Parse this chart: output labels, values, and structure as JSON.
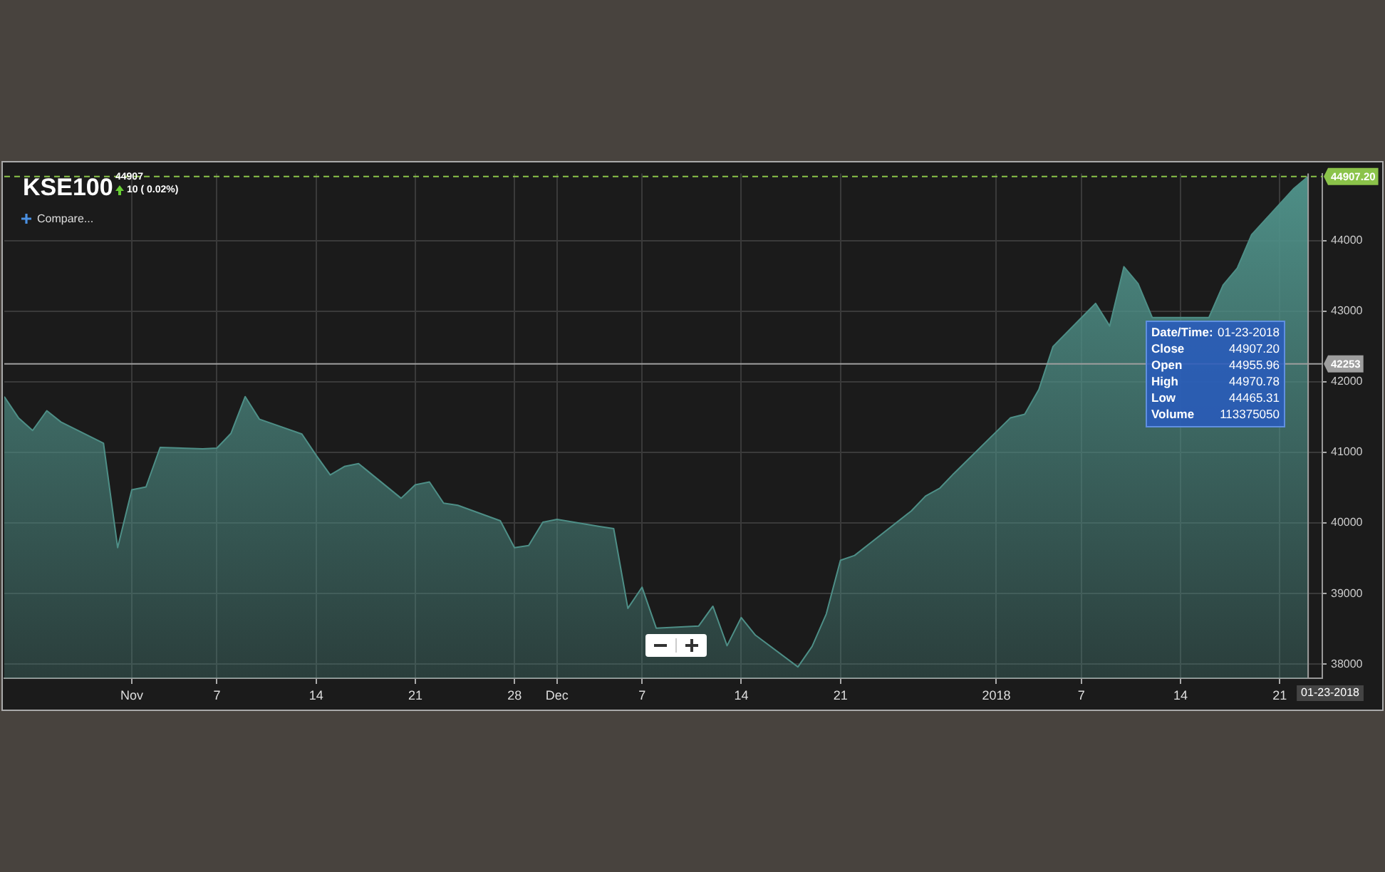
{
  "chart_data": {
    "type": "area",
    "title": "KSE100",
    "subtitle": "44907",
    "x": [
      "2017-10-23",
      "2017-10-24",
      "2017-10-25",
      "2017-10-26",
      "2017-10-27",
      "2017-10-30",
      "2017-10-31",
      "2017-11-01",
      "2017-11-02",
      "2017-11-03",
      "2017-11-06",
      "2017-11-07",
      "2017-11-08",
      "2017-11-09",
      "2017-11-10",
      "2017-11-13",
      "2017-11-14",
      "2017-11-15",
      "2017-11-16",
      "2017-11-17",
      "2017-11-20",
      "2017-11-21",
      "2017-11-22",
      "2017-11-23",
      "2017-11-24",
      "2017-11-27",
      "2017-11-28",
      "2017-11-29",
      "2017-11-30",
      "2017-12-01",
      "2017-12-04",
      "2017-12-05",
      "2017-12-06",
      "2017-12-07",
      "2017-12-08",
      "2017-12-11",
      "2017-12-12",
      "2017-12-13",
      "2017-12-14",
      "2017-12-15",
      "2017-12-18",
      "2017-12-19",
      "2017-12-20",
      "2017-12-21",
      "2017-12-22",
      "2017-12-26",
      "2017-12-27",
      "2017-12-28",
      "2017-12-29",
      "2018-01-02",
      "2018-01-03",
      "2018-01-04",
      "2018-01-05",
      "2018-01-08",
      "2018-01-09",
      "2018-01-10",
      "2018-01-11",
      "2018-01-12",
      "2018-01-15",
      "2018-01-16",
      "2018-01-17",
      "2018-01-18",
      "2018-01-19",
      "2018-01-22",
      "2018-01-23"
    ],
    "series": [
      {
        "color": "#4e8f87",
        "values": [
          41790,
          41490,
          41310,
          41590,
          41430,
          41130,
          39650,
          40470,
          40510,
          41070,
          41050,
          41060,
          41270,
          41790,
          41470,
          41260,
          40960,
          40680,
          40800,
          40840,
          40350,
          40540,
          40580,
          40280,
          40250,
          40030,
          39650,
          39680,
          40010,
          40050,
          39950,
          39920,
          38790,
          39090,
          38510,
          38540,
          38820,
          38260,
          38660,
          38410,
          37960,
          38250,
          38710,
          39470,
          39540,
          40170,
          40380,
          40490,
          40700,
          41490,
          41540,
          41890,
          42500,
          43110,
          42790,
          43630,
          43390,
          42910,
          null,
          42910,
          43370,
          43610,
          44080,
          44740,
          44907.2
        ]
      }
    ],
    "xlim": [
      "2017-10-23",
      "2018-01-24"
    ],
    "xticks": [
      {
        "value": "2017-11-01",
        "label": "Nov"
      },
      {
        "value": "2017-11-07",
        "label": "7"
      },
      {
        "value": "2017-11-14",
        "label": "14"
      },
      {
        "value": "2017-11-21",
        "label": "21"
      },
      {
        "value": "2017-11-28",
        "label": "28"
      },
      {
        "value": "2017-12-01",
        "label": "Dec"
      },
      {
        "value": "2017-12-07",
        "label": "7"
      },
      {
        "value": "2017-12-14",
        "label": "14"
      },
      {
        "value": "2017-12-21",
        "label": "21"
      },
      {
        "value": "2018-01-01",
        "label": "2018"
      },
      {
        "value": "2018-01-07",
        "label": "7"
      },
      {
        "value": "2018-01-14",
        "label": "14"
      },
      {
        "value": "2018-01-21",
        "label": "21"
      }
    ],
    "ylim": [
      37800,
      44950
    ],
    "yticks": [
      38000,
      39000,
      40000,
      41000,
      42000,
      43000,
      44000
    ],
    "grid": true,
    "legend": false,
    "marker": "none",
    "ref_lines": [
      {
        "axis": "y",
        "value": 44907.2,
        "label": "44907.20",
        "color": "#8bc34a",
        "line_style": "dashed"
      },
      {
        "axis": "y",
        "value": 42253,
        "label": "42253",
        "color": "#9e9e9e",
        "line_style": "solid"
      },
      {
        "axis": "x",
        "value": "2018-01-23",
        "label": "01-23-2018",
        "color": "#9e9e9e",
        "line_style": "solid"
      }
    ],
    "annotations": [
      "10 ( 0.02%)",
      "Compare...",
      "Date/Time: 01-23-2018",
      "Close 44907.20",
      "Open 44955.96",
      "High 44970.78",
      "Low 44465.31",
      "Volume 113375050"
    ]
  }
}
